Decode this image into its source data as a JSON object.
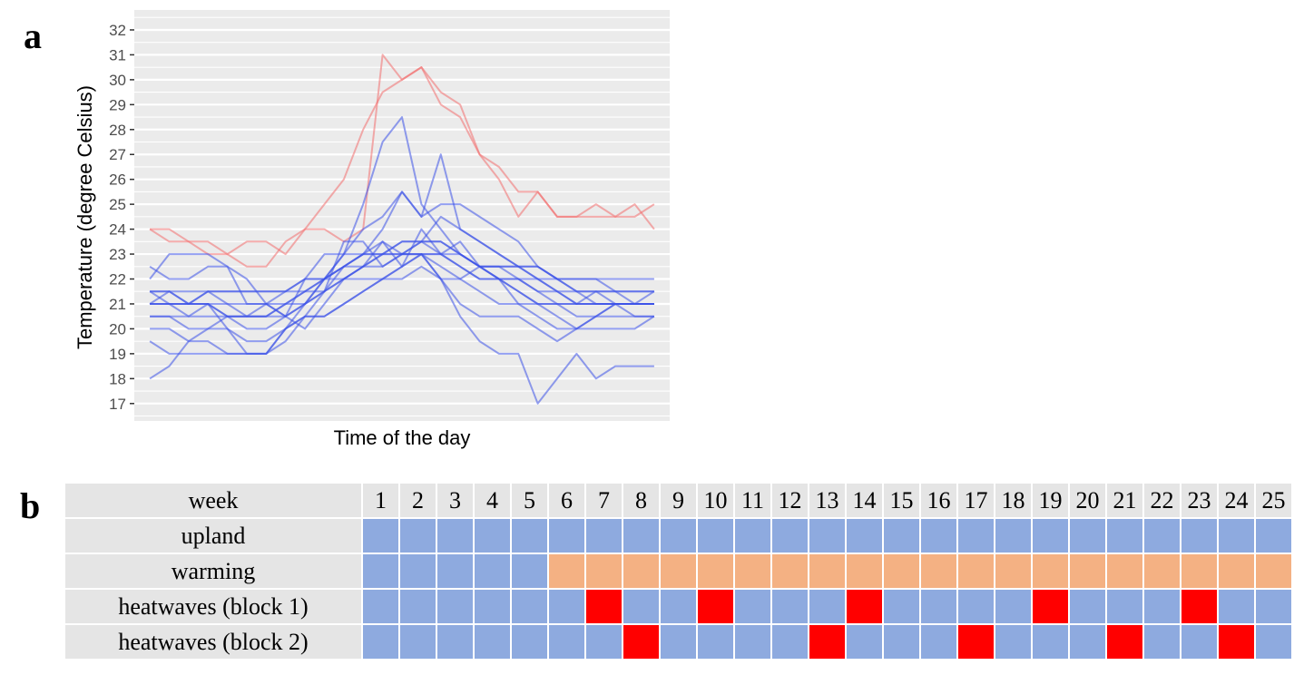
{
  "panels": {
    "a": "a",
    "b": "b"
  },
  "chart_data": {
    "type": "line",
    "title": "",
    "xlabel": "Time of the day",
    "ylabel": "Temperature (degree Celsius)",
    "ylim": [
      16.3,
      32.8
    ],
    "yticks": [
      17,
      18,
      19,
      20,
      21,
      22,
      23,
      24,
      25,
      26,
      27,
      28,
      29,
      30,
      31,
      32
    ],
    "x": [
      0,
      1,
      2,
      3,
      4,
      5,
      6,
      7,
      8,
      9,
      10,
      11,
      12,
      13,
      14,
      15,
      16,
      17,
      18,
      19,
      20,
      21,
      22,
      23,
      24,
      25,
      26
    ],
    "xlim": [
      -0.8,
      26.8
    ],
    "grid": true,
    "background": "#ebebeb",
    "colors": {
      "blue": "#3d52e8",
      "red": "#f26d6d"
    },
    "series": [
      {
        "color": "red",
        "values": [
          24,
          24,
          23.5,
          23.5,
          23,
          23.5,
          23.5,
          23,
          24,
          24,
          23.5,
          24,
          31,
          30,
          30.5,
          29,
          28.5,
          27,
          26.5,
          25.5,
          25.5,
          24.5,
          24.5,
          25,
          24.5,
          24.5,
          25
        ]
      },
      {
        "color": "red",
        "values": [
          24,
          23.5,
          23.5,
          23,
          23,
          22.5,
          22.5,
          23.5,
          24,
          25,
          26,
          28,
          29.5,
          30,
          30.5,
          29.5,
          29,
          27,
          26,
          24.5,
          25.5,
          24.5,
          24.5,
          24.5,
          24.5,
          25,
          24
        ]
      },
      {
        "color": "blue",
        "values": [
          22,
          23,
          23,
          23,
          22.5,
          22,
          21,
          20.5,
          21,
          22,
          23,
          25,
          27.5,
          28.5,
          25,
          24,
          23,
          22.5,
          22,
          21.5,
          21,
          21,
          21,
          21.5,
          21.5,
          21.5,
          21.5
        ]
      },
      {
        "color": "blue",
        "values": [
          22.5,
          22,
          22,
          22.5,
          22.5,
          21,
          21,
          20.5,
          22,
          23,
          23,
          23,
          24,
          25.5,
          24.5,
          27,
          24,
          23.5,
          23,
          22.5,
          22,
          21.5,
          21,
          21,
          21,
          21,
          21.5
        ]
      },
      {
        "color": "blue",
        "values": [
          21.5,
          21.5,
          21,
          21.5,
          21,
          20.5,
          20.5,
          21,
          21.5,
          22,
          23,
          24,
          24.5,
          25.5,
          24.5,
          25,
          25,
          24.5,
          24,
          23.5,
          22.5,
          22,
          21.5,
          21,
          21,
          21,
          21
        ]
      },
      {
        "color": "blue",
        "values": [
          21.5,
          21.5,
          21.5,
          21.5,
          21.5,
          21.5,
          21.5,
          21.5,
          22,
          22,
          22.5,
          23,
          23,
          23.5,
          23.5,
          24.5,
          24,
          23.5,
          23,
          22.5,
          22,
          22,
          21.5,
          21.5,
          21.5,
          21,
          21
        ]
      },
      {
        "color": "blue",
        "values": [
          21,
          21,
          21,
          21.5,
          21.5,
          21.5,
          21.5,
          21.5,
          22,
          22,
          22,
          22.5,
          23,
          23,
          23,
          23,
          23,
          22.5,
          22.5,
          22.5,
          22.5,
          22,
          22,
          22,
          22,
          22,
          22
        ]
      },
      {
        "color": "blue",
        "values": [
          21,
          21,
          21,
          21,
          21,
          21,
          21,
          21,
          21.5,
          22,
          22.5,
          23,
          23.5,
          23,
          23.5,
          23.5,
          23,
          22.5,
          22.5,
          22,
          21.5,
          21.5,
          21,
          21,
          21,
          21,
          21
        ]
      },
      {
        "color": "blue",
        "values": [
          20.5,
          20.5,
          20.5,
          20.5,
          20.5,
          20.5,
          20.5,
          20.5,
          21,
          21.5,
          22,
          22.5,
          23,
          23.5,
          23.5,
          23.5,
          23,
          22.5,
          22,
          22,
          22,
          21.5,
          21.5,
          21.5,
          21,
          21,
          21
        ]
      },
      {
        "color": "blue",
        "values": [
          21,
          21,
          21,
          21,
          20.5,
          20.5,
          20.5,
          21,
          21,
          22,
          22.5,
          23,
          23,
          23,
          23.5,
          23,
          22.5,
          22,
          22,
          22,
          21.5,
          21,
          21,
          21,
          21,
          20.5,
          20.5
        ]
      },
      {
        "color": "blue",
        "values": [
          21.5,
          21,
          20.5,
          21,
          20.5,
          20,
          20,
          20.5,
          20,
          21,
          22,
          22.5,
          23.5,
          22.5,
          24,
          23,
          22.5,
          22,
          22,
          21.5,
          21,
          21,
          20.5,
          20.5,
          21,
          21,
          21
        ]
      },
      {
        "color": "blue",
        "values": [
          21,
          21.5,
          21,
          21,
          20,
          19.5,
          19.5,
          20,
          20.5,
          21.5,
          23.5,
          23.5,
          22.5,
          23,
          23,
          23,
          23.5,
          22.5,
          22,
          21,
          21,
          20.5,
          20,
          20.5,
          20.5,
          20.5,
          20.5
        ]
      },
      {
        "color": "blue",
        "values": [
          20.5,
          20.5,
          20,
          20,
          20,
          19,
          19,
          20,
          21,
          21.5,
          22,
          22,
          22,
          22.5,
          23,
          22.5,
          22,
          21.5,
          21,
          21,
          20.5,
          20,
          20,
          20,
          20,
          20,
          20.5
        ]
      },
      {
        "color": "blue",
        "values": [
          20,
          20,
          19.5,
          19.5,
          19,
          19,
          19,
          20,
          20.5,
          20.5,
          21,
          21.5,
          22,
          22.5,
          23,
          22,
          21,
          20.5,
          20.5,
          20.5,
          20,
          19.5,
          20,
          20.5,
          21,
          21,
          21
        ]
      },
      {
        "color": "blue",
        "values": [
          19.5,
          19,
          19,
          19,
          19,
          19,
          19,
          19.5,
          20.5,
          20.5,
          21,
          21.5,
          22,
          22,
          22.5,
          22,
          20.5,
          19.5,
          19,
          19,
          17,
          18,
          19,
          18,
          18.5,
          18.5,
          18.5
        ]
      },
      {
        "color": "blue",
        "values": [
          18,
          18.5,
          19.5,
          20,
          20.5,
          20.5,
          21,
          21.5,
          21.5,
          21.5,
          22.5,
          22.5,
          22.5,
          23,
          23,
          22,
          22,
          22.5,
          22.5,
          22.5,
          22.5,
          22,
          22,
          22,
          21.5,
          21.5,
          21.5
        ]
      }
    ]
  },
  "schedule": {
    "header_label": "week",
    "weeks": [
      "1",
      "2",
      "3",
      "4",
      "5",
      "6",
      "7",
      "8",
      "9",
      "10",
      "11",
      "12",
      "13",
      "14",
      "15",
      "16",
      "17",
      "18",
      "19",
      "20",
      "21",
      "22",
      "23",
      "24",
      "25"
    ],
    "colors": {
      "base": "#8eaadf",
      "warming": "#f4b183",
      "heatwave": "#ff0000"
    },
    "rows": [
      {
        "label": "upland",
        "cells": [
          "base",
          "base",
          "base",
          "base",
          "base",
          "base",
          "base",
          "base",
          "base",
          "base",
          "base",
          "base",
          "base",
          "base",
          "base",
          "base",
          "base",
          "base",
          "base",
          "base",
          "base",
          "base",
          "base",
          "base",
          "base"
        ]
      },
      {
        "label": "warming",
        "cells": [
          "base",
          "base",
          "base",
          "base",
          "base",
          "warming",
          "warming",
          "warming",
          "warming",
          "warming",
          "warming",
          "warming",
          "warming",
          "warming",
          "warming",
          "warming",
          "warming",
          "warming",
          "warming",
          "warming",
          "warming",
          "warming",
          "warming",
          "warming",
          "warming"
        ]
      },
      {
        "label": "heatwaves (block 1)",
        "cells": [
          "base",
          "base",
          "base",
          "base",
          "base",
          "base",
          "heatwave",
          "base",
          "base",
          "heatwave",
          "base",
          "base",
          "base",
          "heatwave",
          "base",
          "base",
          "base",
          "base",
          "heatwave",
          "base",
          "base",
          "base",
          "heatwave",
          "base",
          "base"
        ]
      },
      {
        "label": "heatwaves (block 2)",
        "cells": [
          "base",
          "base",
          "base",
          "base",
          "base",
          "base",
          "base",
          "heatwave",
          "base",
          "base",
          "base",
          "base",
          "heatwave",
          "base",
          "base",
          "base",
          "heatwave",
          "base",
          "base",
          "base",
          "heatwave",
          "base",
          "base",
          "heatwave",
          "base"
        ]
      }
    ]
  }
}
